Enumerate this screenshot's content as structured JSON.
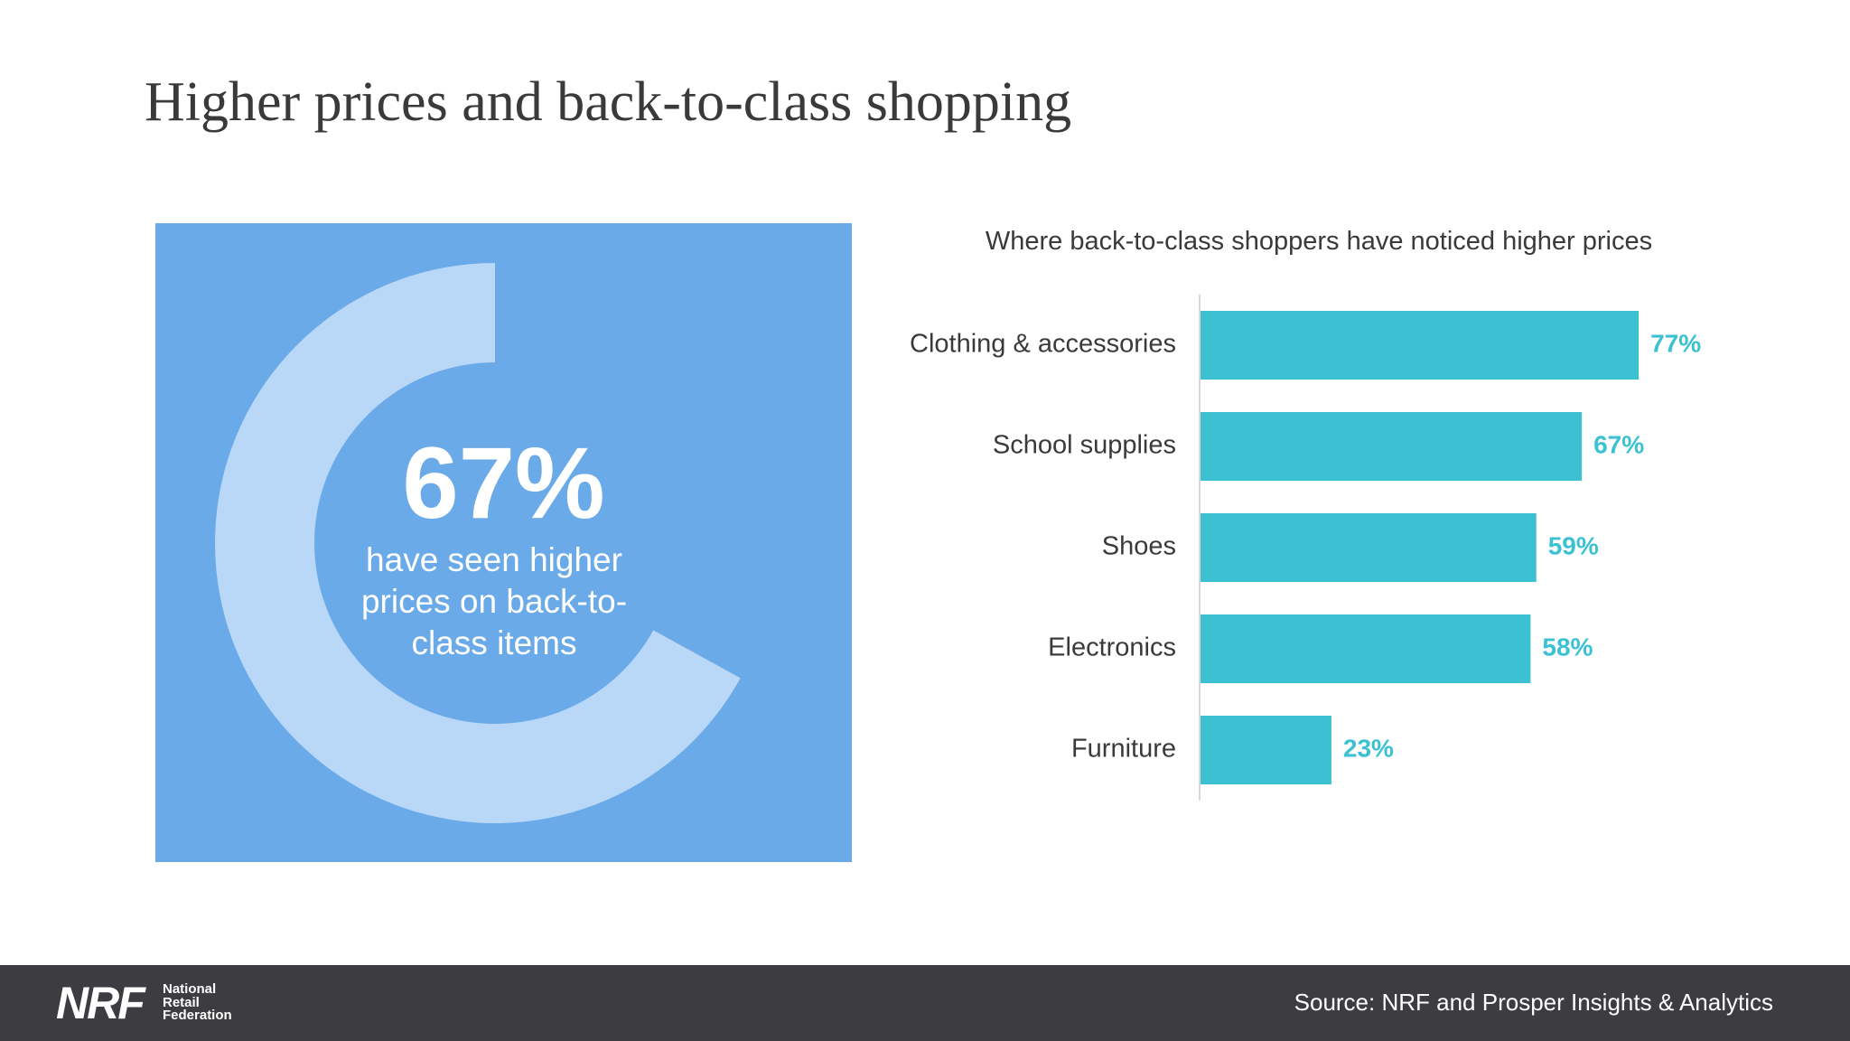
{
  "title": "Higher prices and back-to-class shopping",
  "highlight": {
    "value": "67%",
    "fraction": 0.67,
    "caption_lines": [
      "have seen higher",
      "prices on back-to-",
      "class items"
    ],
    "colors": {
      "panel": "#6aaae9",
      "ring": "#b9d7f6"
    }
  },
  "chart_data": {
    "type": "bar",
    "orientation": "horizontal",
    "title": "Where back-to-class shoppers have noticed higher prices",
    "categories": [
      "Clothing & accessories",
      "School supplies",
      "Shoes",
      "Electronics",
      "Furniture"
    ],
    "values": [
      77,
      67,
      59,
      58,
      23
    ],
    "value_labels": [
      "77%",
      "67%",
      "59%",
      "58%",
      "23%"
    ],
    "unit": "%",
    "xlim": [
      0,
      100
    ],
    "grid": false,
    "color": "#3cc1d3"
  },
  "footer": {
    "logo_mark": "NRF",
    "logo_lines": [
      "National",
      "Retail",
      "Federation"
    ],
    "source": "Source: NRF and Prosper Insights & Analytics"
  }
}
